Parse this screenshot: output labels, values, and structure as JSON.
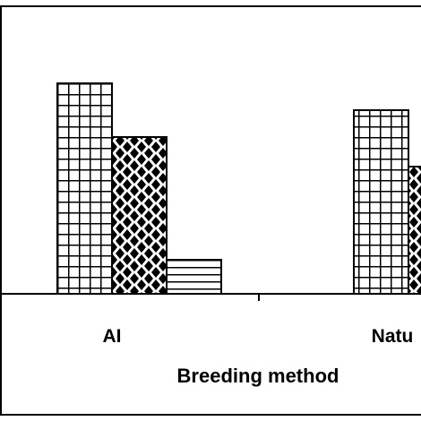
{
  "chart_data": {
    "type": "bar",
    "categories": [
      "AI",
      "Natu"
    ],
    "series": [
      {
        "pattern": "grid",
        "values": [
          235,
          205
        ]
      },
      {
        "pattern": "diamond-dots",
        "values": [
          175,
          142
        ]
      },
      {
        "pattern": "horizontal-lines",
        "values": [
          38,
          null
        ]
      }
    ],
    "xlabel": "Breeding method",
    "ylim": [
      0,
      320
    ],
    "grid": false,
    "colors": {
      "stroke": "#000000",
      "fill": "#ffffff"
    }
  }
}
